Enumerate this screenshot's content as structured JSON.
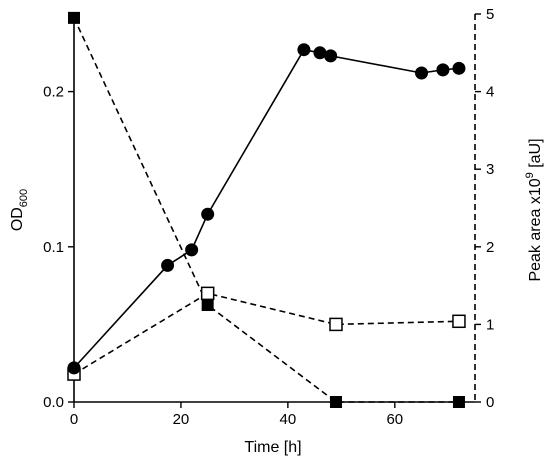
{
  "chart_data": {
    "type": "line",
    "xlabel": "Time [h]",
    "ylabel_main": "OD",
    "ylabel_sub": "600",
    "y2label_main": "Peak area  x10",
    "y2label_sup": "9",
    "y2label_unit": " [aU]",
    "xlim": [
      0,
      75
    ],
    "ylim": [
      0,
      0.25
    ],
    "y2lim": [
      0,
      5
    ],
    "xticks": [
      0,
      20,
      40,
      60
    ],
    "xtick_labels": [
      "0",
      "20",
      "40",
      "60"
    ],
    "yticks": [
      0,
      0.1,
      0.2
    ],
    "ytick_labels": [
      "0.0",
      "0.1",
      "0.2"
    ],
    "y2ticks": [
      0,
      1,
      2,
      3,
      4,
      5
    ],
    "y2tick_labels": [
      "0",
      "1",
      "2",
      "3",
      "4",
      "5"
    ],
    "grid": false,
    "series": [
      {
        "axis": "left",
        "line": "solid",
        "marker": "filled-circle",
        "x": [
          0,
          17.5,
          22,
          25,
          43,
          46,
          48,
          65,
          69,
          72
        ],
        "y": [
          0.022,
          0.088,
          0.098,
          0.121,
          0.227,
          0.225,
          0.223,
          0.212,
          0.214,
          0.215
        ]
      },
      {
        "axis": "right",
        "line": "dashed",
        "marker": "filled-square",
        "x": [
          0,
          25,
          49,
          72
        ],
        "y": [
          4.95,
          1.25,
          0,
          0
        ]
      },
      {
        "axis": "right",
        "line": "dashed",
        "marker": "open-square",
        "x": [
          0,
          25,
          49,
          72
        ],
        "y": [
          0.36,
          1.4,
          1.0,
          1.04
        ]
      }
    ]
  }
}
